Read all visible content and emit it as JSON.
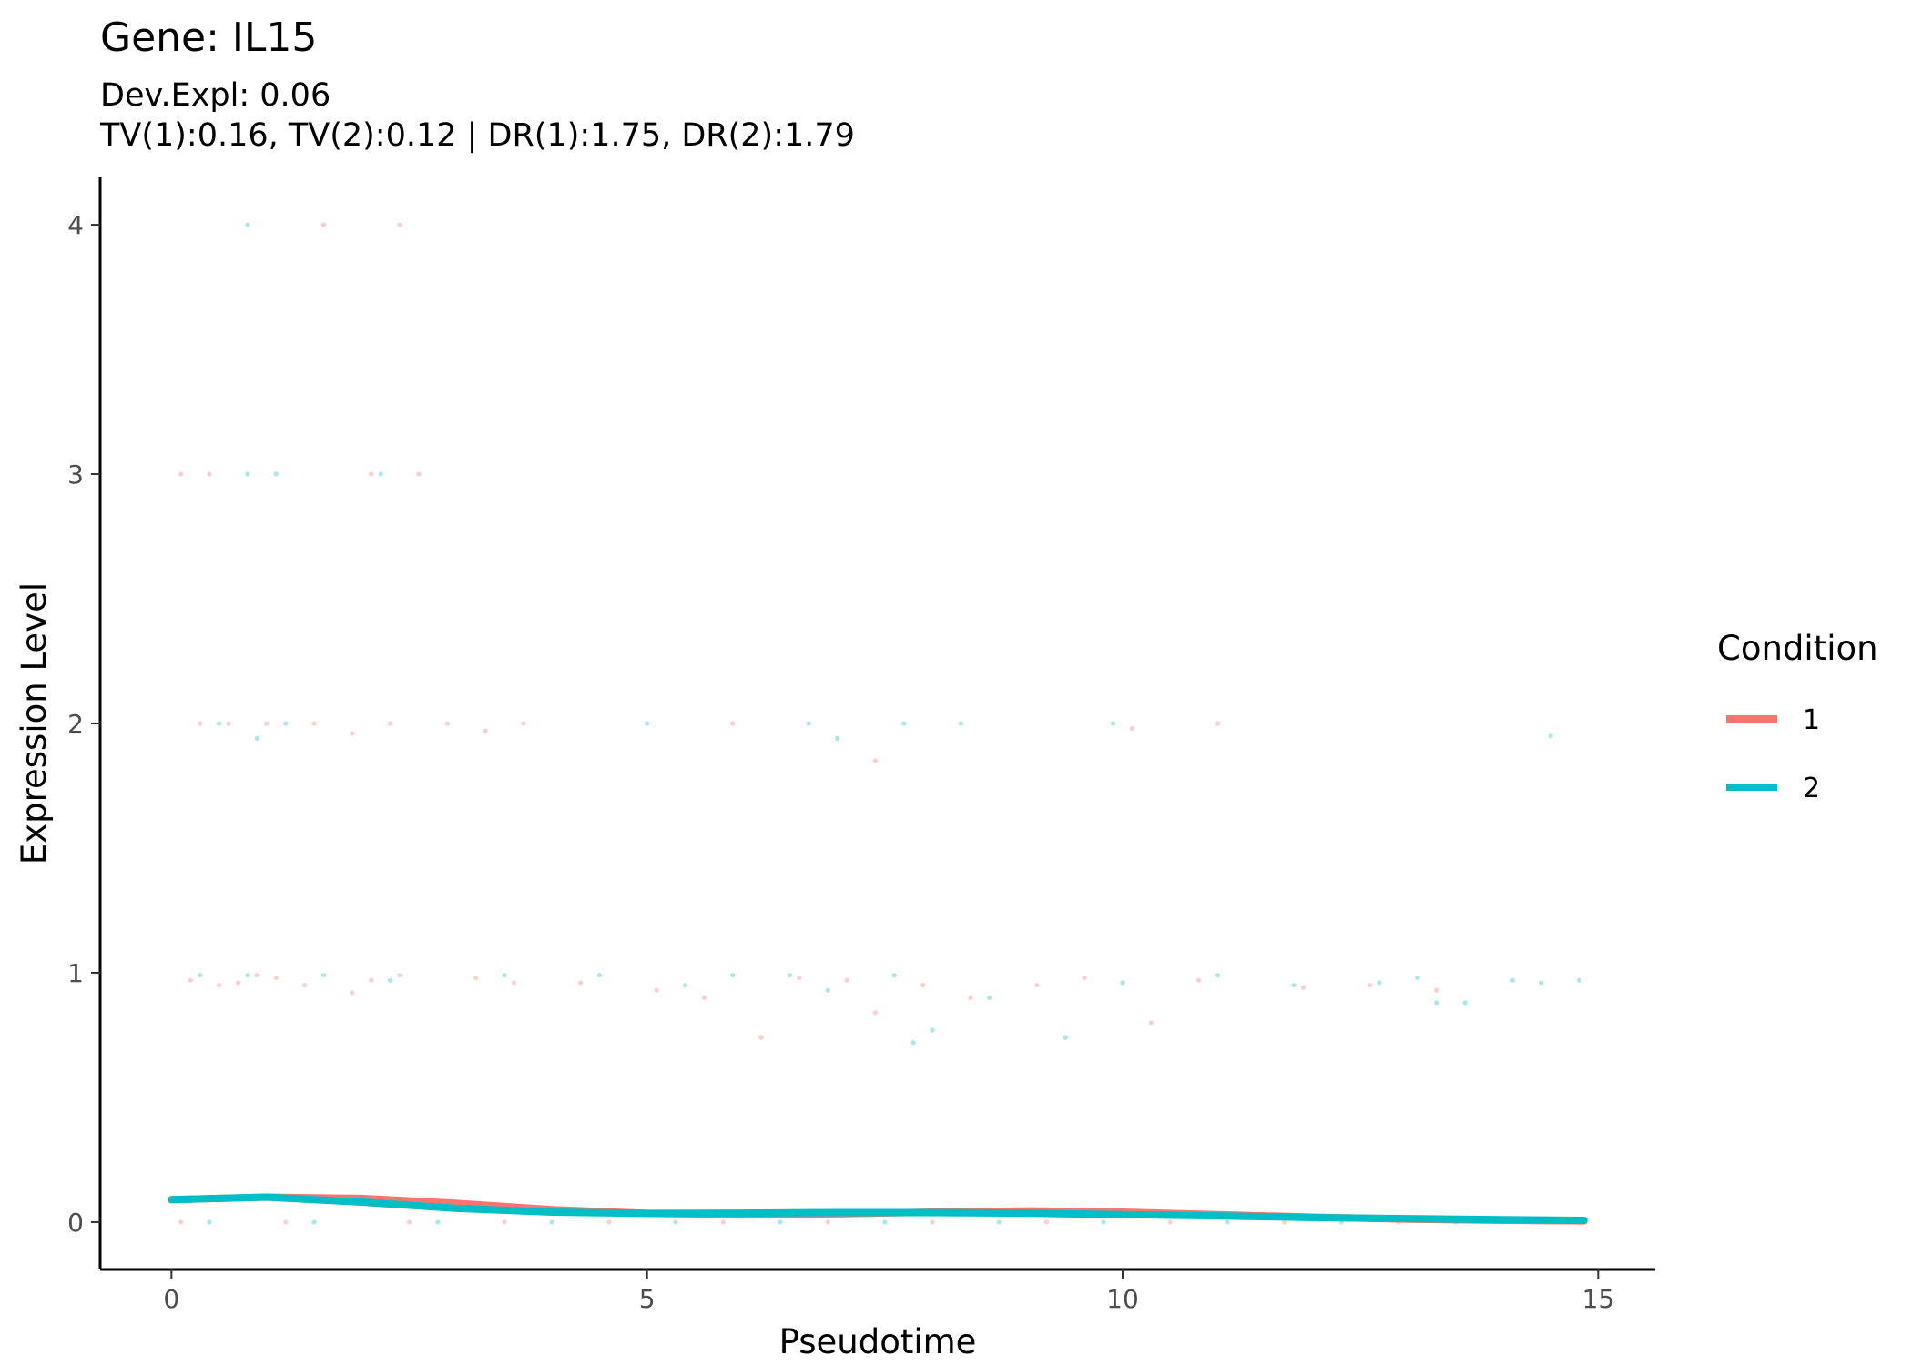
{
  "chart_data": {
    "type": "scatter",
    "title": "Gene: IL15",
    "subtitle_lines": [
      "Dev.Expl: 0.06",
      "TV(1):0.16, TV(2):0.12 | DR(1):1.75, DR(2):1.79"
    ],
    "xlabel": "Pseudotime",
    "ylabel": "Expression Level",
    "xlim": [
      -0.75,
      15.6
    ],
    "ylim": [
      -0.19,
      4.19
    ],
    "x_ticks": [
      0,
      5,
      10,
      15
    ],
    "y_ticks": [
      0,
      1,
      2,
      3,
      4
    ],
    "grid": false,
    "legend": {
      "title": "Condition",
      "position": "right",
      "entries": [
        "1",
        "2"
      ]
    },
    "colors": {
      "1": "#F8766D",
      "2": "#00BFC4"
    },
    "series": [
      {
        "name": "1",
        "fitted_curve": {
          "x": [
            0,
            1,
            2,
            3,
            4,
            5,
            6,
            7,
            8,
            9,
            10,
            11,
            12,
            13,
            14,
            14.85
          ],
          "y": [
            0.09,
            0.1,
            0.095,
            0.075,
            0.05,
            0.035,
            0.03,
            0.033,
            0.04,
            0.045,
            0.04,
            0.03,
            0.02,
            0.012,
            0.007,
            0.005
          ]
        },
        "points": [
          [
            0.1,
            3
          ],
          [
            0.4,
            3
          ],
          [
            1.6,
            4
          ],
          [
            2.4,
            4
          ],
          [
            2.6,
            3
          ],
          [
            2.1,
            3
          ],
          [
            0.3,
            2
          ],
          [
            0.6,
            2
          ],
          [
            1.0,
            2
          ],
          [
            1.5,
            2
          ],
          [
            1.9,
            1.96
          ],
          [
            2.3,
            2
          ],
          [
            2.9,
            2
          ],
          [
            3.3,
            1.97
          ],
          [
            3.7,
            2
          ],
          [
            5.9,
            2
          ],
          [
            7.4,
            1.85
          ],
          [
            10.1,
            1.98
          ],
          [
            11.0,
            2
          ],
          [
            0.2,
            0.97
          ],
          [
            0.5,
            0.95
          ],
          [
            0.9,
            0.99
          ],
          [
            1.4,
            0.95
          ],
          [
            1.9,
            0.92
          ],
          [
            2.4,
            0.99
          ],
          [
            3.2,
            0.98
          ],
          [
            3.6,
            0.96
          ],
          [
            4.3,
            0.96
          ],
          [
            5.1,
            0.93
          ],
          [
            5.6,
            0.9
          ],
          [
            6.2,
            0.74
          ],
          [
            6.6,
            0.98
          ],
          [
            7.1,
            0.97
          ],
          [
            7.4,
            0.84
          ],
          [
            7.9,
            0.95
          ],
          [
            8.4,
            0.9
          ],
          [
            9.1,
            0.95
          ],
          [
            9.6,
            0.98
          ],
          [
            10.3,
            0.8
          ],
          [
            10.8,
            0.97
          ],
          [
            11.9,
            0.94
          ],
          [
            12.6,
            0.95
          ],
          [
            13.3,
            0.93
          ],
          [
            0.7,
            0.96
          ],
          [
            1.1,
            0.98
          ],
          [
            2.1,
            0.97
          ],
          [
            0.1,
            0
          ],
          [
            1.2,
            0
          ],
          [
            2.5,
            0
          ],
          [
            3.5,
            0
          ],
          [
            4.6,
            0
          ],
          [
            5.8,
            0
          ],
          [
            6.9,
            0
          ],
          [
            8.0,
            0
          ],
          [
            9.2,
            0
          ],
          [
            10.5,
            0
          ],
          [
            11.7,
            0
          ],
          [
            12.9,
            0
          ],
          [
            14.1,
            0
          ],
          [
            14.8,
            0
          ]
        ]
      },
      {
        "name": "2",
        "fitted_curve": {
          "x": [
            0,
            1,
            2,
            3,
            4,
            5,
            6,
            7,
            8,
            9,
            10,
            11,
            12,
            13,
            14,
            14.85
          ],
          "y": [
            0.09,
            0.1,
            0.08,
            0.055,
            0.04,
            0.035,
            0.036,
            0.038,
            0.038,
            0.036,
            0.03,
            0.025,
            0.018,
            0.014,
            0.01,
            0.007
          ]
        },
        "points": [
          [
            0.8,
            4
          ],
          [
            0.8,
            3
          ],
          [
            1.1,
            3
          ],
          [
            2.2,
            3
          ],
          [
            0.5,
            2
          ],
          [
            0.9,
            1.94
          ],
          [
            1.2,
            2
          ],
          [
            5.0,
            2
          ],
          [
            6.7,
            2
          ],
          [
            7.0,
            1.94
          ],
          [
            7.7,
            2
          ],
          [
            8.3,
            2
          ],
          [
            9.9,
            2
          ],
          [
            14.5,
            1.95
          ],
          [
            0.3,
            0.99
          ],
          [
            0.8,
            0.99
          ],
          [
            1.6,
            0.99
          ],
          [
            2.3,
            0.97
          ],
          [
            3.5,
            0.99
          ],
          [
            4.5,
            0.99
          ],
          [
            5.9,
            0.99
          ],
          [
            6.5,
            0.99
          ],
          [
            7.6,
            0.99
          ],
          [
            7.8,
            0.72
          ],
          [
            8.0,
            0.77
          ],
          [
            8.6,
            0.9
          ],
          [
            9.4,
            0.74
          ],
          [
            10.0,
            0.96
          ],
          [
            11.0,
            0.99
          ],
          [
            11.8,
            0.95
          ],
          [
            12.7,
            0.96
          ],
          [
            13.1,
            0.98
          ],
          [
            13.3,
            0.88
          ],
          [
            13.6,
            0.88
          ],
          [
            14.1,
            0.97
          ],
          [
            14.4,
            0.96
          ],
          [
            14.8,
            0.97
          ],
          [
            5.4,
            0.95
          ],
          [
            6.9,
            0.93
          ],
          [
            0.4,
            0
          ],
          [
            1.5,
            0
          ],
          [
            2.8,
            0
          ],
          [
            4.0,
            0
          ],
          [
            5.3,
            0
          ],
          [
            6.4,
            0
          ],
          [
            7.5,
            0
          ],
          [
            8.7,
            0
          ],
          [
            9.8,
            0
          ],
          [
            11.1,
            0
          ],
          [
            12.3,
            0
          ],
          [
            13.5,
            0
          ],
          [
            14.6,
            0
          ]
        ]
      }
    ]
  }
}
